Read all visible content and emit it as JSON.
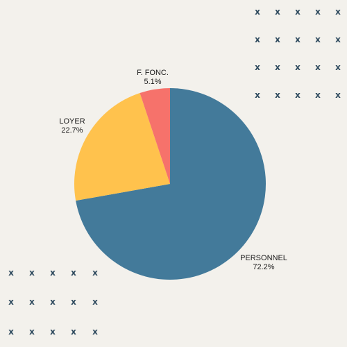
{
  "chart_data": {
    "type": "pie",
    "title": "",
    "slices": [
      {
        "label": "PERSONNEL",
        "value": 72.2,
        "pct_label": "72.2%",
        "color": "#437a9a"
      },
      {
        "label": "LOYER",
        "value": 22.7,
        "pct_label": "22.7%",
        "color": "#ffc24d"
      },
      {
        "label": "F. FONC.",
        "value": 5.1,
        "pct_label": "5.1%",
        "color": "#f6726b"
      }
    ],
    "start": "12 o'clock",
    "direction": "clockwise"
  },
  "decoration": {
    "marker": "x",
    "color": "#2e4a5e"
  }
}
